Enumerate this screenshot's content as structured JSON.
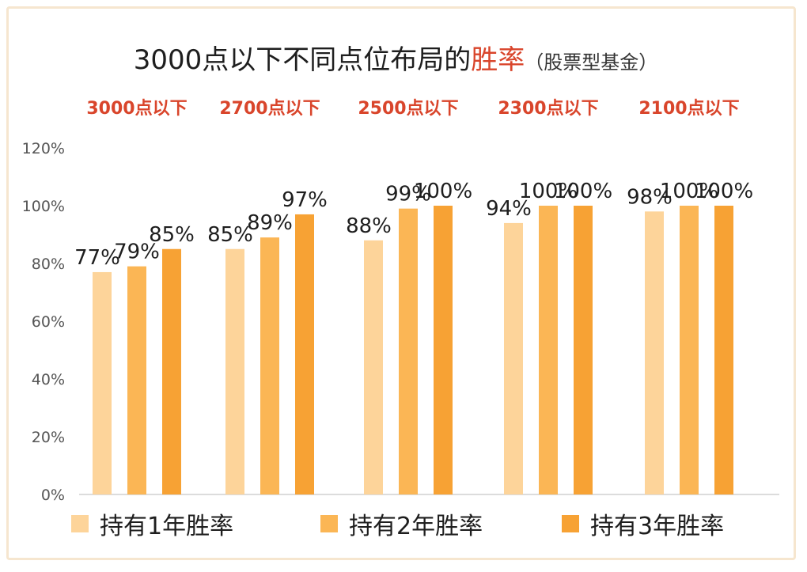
{
  "title": {
    "prefix": "3000点以下不同点位布局的",
    "highlight": "胜率",
    "suffix": "（股票型基金）"
  },
  "colors": {
    "series1": "#fdd49a",
    "series2": "#fbb655",
    "series3": "#f7a234",
    "group_label": "#d9452b",
    "border": "#f6e6cf",
    "axis": "#d0d0d0"
  },
  "chart_data": {
    "type": "bar",
    "categories": [
      "3000点以下",
      "2700点以下",
      "2500点以下",
      "2300点以下",
      "2100点以下"
    ],
    "series": [
      {
        "name": "持有1年胜率",
        "values": [
          77,
          85,
          88,
          94,
          98
        ]
      },
      {
        "name": "持有2年胜率",
        "values": [
          79,
          89,
          99,
          100,
          100
        ]
      },
      {
        "name": "持有3年胜率",
        "values": [
          85,
          97,
          100,
          100,
          100
        ]
      }
    ],
    "data_labels": [
      [
        "77%",
        "79%",
        "85%"
      ],
      [
        "85%",
        "89%",
        "97%"
      ],
      [
        "88%",
        "99%",
        "100%"
      ],
      [
        "94%",
        "100%",
        "100%"
      ],
      [
        "98%",
        "100%",
        "100%"
      ]
    ],
    "yticks": [
      "0%",
      "20%",
      "40%",
      "60%",
      "80%",
      "100%",
      "120%"
    ],
    "ylim": [
      0,
      120
    ],
    "grid": false,
    "legend_position": "bottom"
  }
}
